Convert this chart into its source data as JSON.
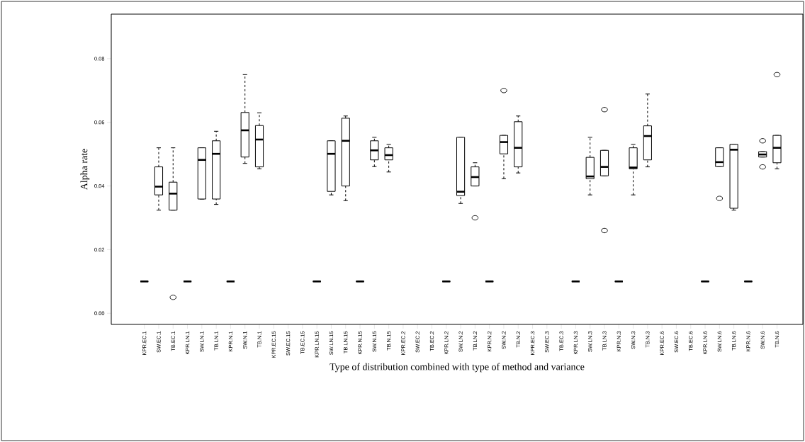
{
  "chart_data": {
    "type": "box",
    "xlabel": "Type of distribution combined with type of method and variance",
    "ylabel": "Alpha rate",
    "categories": [
      "KPR.EC.1",
      "SW.EC.1",
      "TB.EC.1",
      "KPR.LN.1",
      "SW.LN.1",
      "TB.LN.1",
      "KPR.N.1",
      "SW.N.1",
      "TB.N.1",
      "KPR.EC.15",
      "SW.EC.15",
      "TB.EC.15",
      "KPR.LN.15",
      "SW.LN.15",
      "TB.LN.15",
      "KPR.N.15",
      "SW.N.15",
      "TB.N.15",
      "KPR.EC.2",
      "SW.EC.2",
      "TB.EC.2",
      "KPR.LN.2",
      "SW.LN.2",
      "TB.LN.2",
      "KPR.N.2",
      "SW.N.2",
      "TB.N.2",
      "KPR.EC.3",
      "SW.EC.3",
      "TB.EC.3",
      "KPR.LN.3",
      "SW.LN.3",
      "TB.LN.3",
      "KPR.N.3",
      "SW.N.3",
      "TB.N.3",
      "KPR.EC.6",
      "SW.EC.6",
      "TB.EC.6",
      "KPR.LN.6",
      "SW.LN.6",
      "TB.LN.6",
      "KPR.N.6",
      "SW.N.6",
      "TB.N.6"
    ],
    "boxes": [
      {
        "low": 0.01,
        "q1": 0.01,
        "median": 0.01,
        "q3": 0.01,
        "high": 0.01
      },
      {
        "low": 0.0324,
        "q1": 0.0372,
        "median": 0.0398,
        "q3": 0.046,
        "high": 0.052
      },
      {
        "low": 0.0324,
        "q1": 0.0324,
        "median": 0.0376,
        "q3": 0.0412,
        "high": 0.052,
        "outliers": [
          0.005
        ]
      },
      {
        "low": 0.01,
        "q1": 0.01,
        "median": 0.01,
        "q3": 0.01,
        "high": 0.01
      },
      {
        "low": 0.0359,
        "q1": 0.0359,
        "median": 0.0482,
        "q3": 0.052,
        "high": 0.052
      },
      {
        "low": 0.0342,
        "q1": 0.0359,
        "median": 0.0501,
        "q3": 0.0542,
        "high": 0.0572
      },
      {
        "low": 0.01,
        "q1": 0.01,
        "median": 0.01,
        "q3": 0.01,
        "high": 0.01
      },
      {
        "low": 0.0471,
        "q1": 0.0491,
        "median": 0.0575,
        "q3": 0.0631,
        "high": 0.075
      },
      {
        "low": 0.0454,
        "q1": 0.046,
        "median": 0.0546,
        "q3": 0.059,
        "high": 0.063
      },
      null,
      null,
      null,
      {
        "low": 0.01,
        "q1": 0.01,
        "median": 0.01,
        "q3": 0.01,
        "high": 0.01
      },
      {
        "low": 0.0372,
        "q1": 0.0383,
        "median": 0.0501,
        "q3": 0.0542,
        "high": 0.0542
      },
      {
        "low": 0.0354,
        "q1": 0.04,
        "median": 0.0542,
        "q3": 0.0613,
        "high": 0.062
      },
      {
        "low": 0.01,
        "q1": 0.01,
        "median": 0.01,
        "q3": 0.01,
        "high": 0.01
      },
      {
        "low": 0.0461,
        "q1": 0.0482,
        "median": 0.0512,
        "q3": 0.0542,
        "high": 0.0553
      },
      {
        "low": 0.0444,
        "q1": 0.0482,
        "median": 0.0497,
        "q3": 0.052,
        "high": 0.0531
      },
      null,
      null,
      null,
      {
        "low": 0.01,
        "q1": 0.01,
        "median": 0.01,
        "q3": 0.01,
        "high": 0.01
      },
      {
        "low": 0.0345,
        "q1": 0.037,
        "median": 0.0382,
        "q3": 0.0553,
        "high": 0.0553
      },
      {
        "low": 0.04,
        "q1": 0.04,
        "median": 0.0428,
        "q3": 0.046,
        "high": 0.0473,
        "outliers": [
          0.03
        ]
      },
      {
        "low": 0.01,
        "q1": 0.01,
        "median": 0.01,
        "q3": 0.01,
        "high": 0.01
      },
      {
        "low": 0.0423,
        "q1": 0.0501,
        "median": 0.0538,
        "q3": 0.0559,
        "high": 0.0559,
        "outliers": [
          0.07
        ]
      },
      {
        "low": 0.0441,
        "q1": 0.046,
        "median": 0.052,
        "q3": 0.0602,
        "high": 0.062
      },
      null,
      null,
      null,
      {
        "low": 0.01,
        "q1": 0.01,
        "median": 0.01,
        "q3": 0.01,
        "high": 0.01
      },
      {
        "low": 0.0372,
        "q1": 0.0423,
        "median": 0.043,
        "q3": 0.049,
        "high": 0.0553
      },
      {
        "low": 0.0432,
        "q1": 0.0432,
        "median": 0.046,
        "q3": 0.0512,
        "high": 0.0512,
        "outliers": [
          0.064,
          0.026
        ]
      },
      {
        "low": 0.01,
        "q1": 0.01,
        "median": 0.01,
        "q3": 0.01,
        "high": 0.01
      },
      {
        "low": 0.0372,
        "q1": 0.0454,
        "median": 0.0458,
        "q3": 0.052,
        "high": 0.0531
      },
      {
        "low": 0.046,
        "q1": 0.0482,
        "median": 0.0557,
        "q3": 0.0589,
        "high": 0.0689
      },
      null,
      null,
      null,
      {
        "low": 0.01,
        "q1": 0.01,
        "median": 0.01,
        "q3": 0.01,
        "high": 0.01
      },
      {
        "low": 0.0461,
        "q1": 0.0461,
        "median": 0.0475,
        "q3": 0.052,
        "high": 0.052,
        "outliers": [
          0.0361
        ]
      },
      {
        "low": 0.0324,
        "q1": 0.033,
        "median": 0.0514,
        "q3": 0.0531,
        "high": 0.0531
      },
      {
        "low": 0.01,
        "q1": 0.01,
        "median": 0.01,
        "q3": 0.01,
        "high": 0.01
      },
      {
        "low": 0.0491,
        "q1": 0.0491,
        "median": 0.0499,
        "q3": 0.0508,
        "high": 0.0508,
        "outliers": [
          0.0542,
          0.046
        ]
      },
      {
        "low": 0.0454,
        "q1": 0.0473,
        "median": 0.052,
        "q3": 0.0559,
        "high": 0.0559,
        "outliers": [
          0.075
        ]
      }
    ],
    "ylim": [
      -0.0035,
      0.094
    ],
    "yticks": [
      {
        "value": 0,
        "label": "0.00"
      },
      {
        "value": 0.02,
        "label": "0.02"
      },
      {
        "value": 0.04,
        "label": "0.04"
      },
      {
        "value": 0.06,
        "label": "0.06"
      },
      {
        "value": 0.08,
        "label": "0.08"
      }
    ],
    "grid": false
  }
}
